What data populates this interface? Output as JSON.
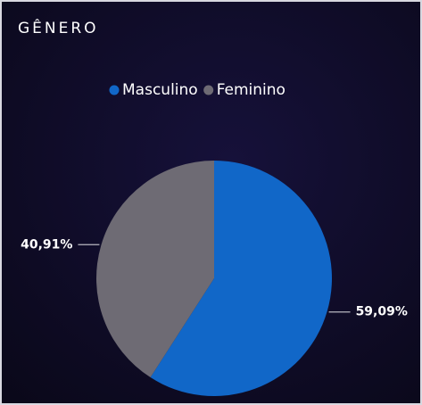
{
  "chart_data": {
    "type": "pie",
    "title": "GÊNERO",
    "categories": [
      "Masculino",
      "Feminino"
    ],
    "values": [
      59.09,
      40.91
    ],
    "value_labels": [
      "59,09%",
      "40,91%"
    ],
    "colors": [
      "#1167c8",
      "#6e6b74"
    ]
  }
}
